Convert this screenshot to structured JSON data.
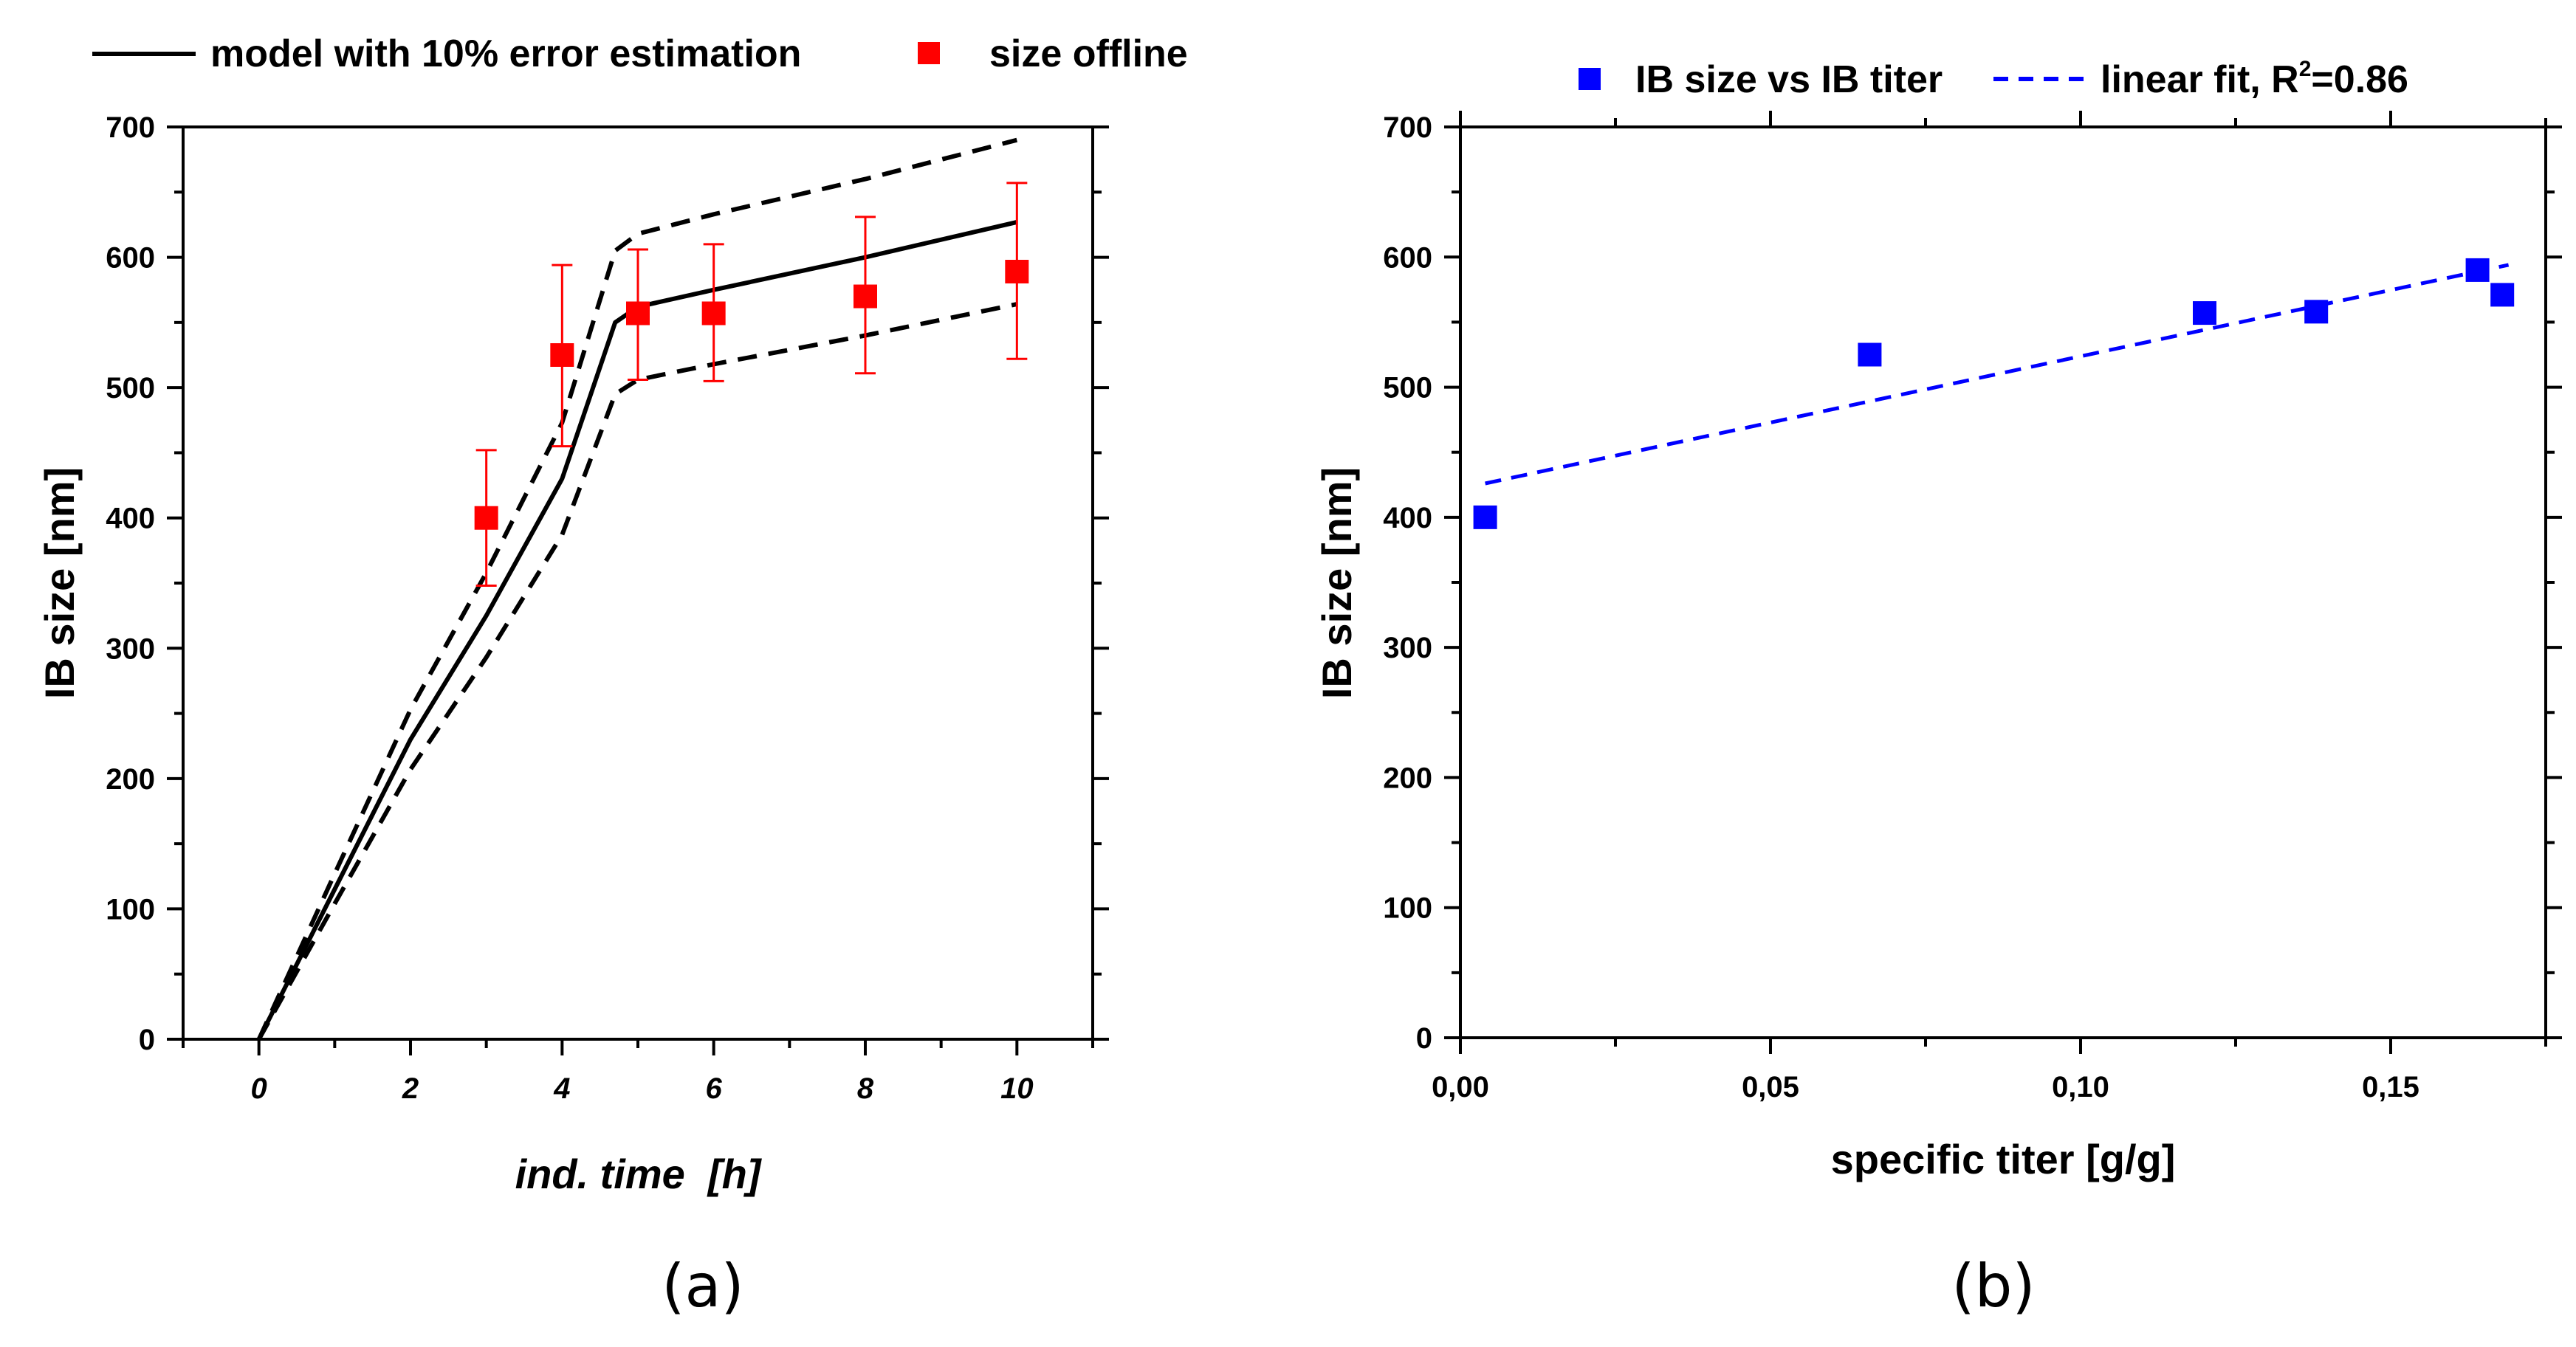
{
  "chart_data": [
    {
      "type": "line",
      "panel_label": "(a)",
      "xlabel": "ind. time  [h]",
      "ylabel": "IB size [nm]",
      "xlim": [
        -1,
        11
      ],
      "ylim": [
        0,
        700
      ],
      "xticks": [
        0,
        2,
        4,
        6,
        8,
        10
      ],
      "yticks": [
        0,
        100,
        200,
        300,
        400,
        500,
        600,
        700
      ],
      "grid": false,
      "legend_position": "top",
      "series": [
        {
          "name": "model with 10% error estimation",
          "style": "solid",
          "color": "#000000",
          "x": [
            0,
            1,
            2,
            3,
            4,
            4.7,
            5,
            6,
            8,
            10
          ],
          "y": [
            0,
            115,
            230,
            325,
            430,
            550,
            562,
            575,
            600,
            627
          ]
        },
        {
          "style": "dashed",
          "color": "#000000",
          "x": [
            0,
            1,
            2,
            3,
            4,
            4.7,
            5,
            6,
            8,
            10
          ],
          "y": [
            0,
            127,
            253,
            358,
            473,
            605,
            618,
            633,
            660,
            690
          ]
        },
        {
          "style": "dashed",
          "color": "#000000",
          "x": [
            0,
            1,
            2,
            3,
            4,
            4.7,
            5,
            6,
            8,
            10
          ],
          "y": [
            0,
            104,
            207,
            293,
            387,
            495,
            506,
            518,
            540,
            564
          ]
        },
        {
          "name": "size offline",
          "style": "markers",
          "marker": "square",
          "color": "#ff0000",
          "x": [
            3,
            4,
            5,
            6,
            8,
            10
          ],
          "y": [
            400,
            525,
            557,
            557,
            570,
            589
          ],
          "err_low": [
            348,
            455,
            506,
            505,
            511,
            522
          ],
          "err_high": [
            452,
            594,
            606,
            610,
            631,
            657
          ]
        }
      ]
    },
    {
      "type": "scatter",
      "panel_label": "(b)",
      "xlabel": "specific titer [g/g]",
      "ylabel": "IB size [nm]",
      "xlim": [
        0.0,
        0.175
      ],
      "ylim": [
        0,
        700
      ],
      "xticks": [
        "0,00",
        "0,05",
        "0,10",
        "0,15"
      ],
      "xtick_values": [
        0.0,
        0.05,
        0.1,
        0.15
      ],
      "yticks": [
        0,
        100,
        200,
        300,
        400,
        500,
        600,
        700
      ],
      "grid": false,
      "legend_position": "top",
      "series": [
        {
          "name": "IB size vs IB titer",
          "style": "markers",
          "marker": "square",
          "color": "#0000ff",
          "x": [
            0.004,
            0.066,
            0.12,
            0.138,
            0.164,
            0.168
          ],
          "y": [
            400,
            525,
            557,
            558,
            590,
            571
          ]
        },
        {
          "name": "linear fit, R",
          "name_superscript": "2",
          "name_suffix": "=0.86",
          "style": "dashed",
          "color": "#0000ff",
          "x": [
            0.004,
            0.169
          ],
          "y": [
            426,
            594
          ]
        }
      ]
    }
  ]
}
